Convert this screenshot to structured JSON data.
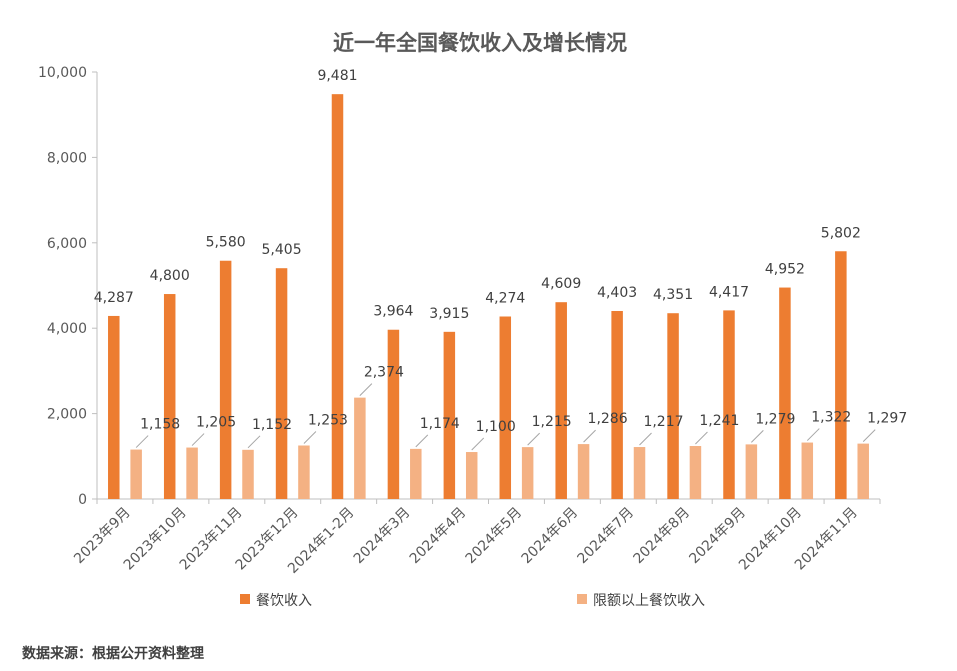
{
  "chart_data": {
    "type": "bar",
    "title": "近一年全国餐饮收入及增长情况",
    "categories": [
      "2023年9月",
      "2023年10月",
      "2023年11月",
      "2023年12月",
      "2024年1-2月",
      "2024年3月",
      "2024年4月",
      "2024年5月",
      "2024年6月",
      "2024年7月",
      "2024年8月",
      "2024年9月",
      "2024年10月",
      "2024年11月"
    ],
    "series": [
      {
        "name": "餐饮收入",
        "color": "#ED7D31",
        "values": [
          4287,
          4800,
          5580,
          5405,
          9481,
          3964,
          3915,
          4274,
          4609,
          4403,
          4351,
          4417,
          4952,
          5802
        ],
        "labels": [
          "4,287",
          "4,800",
          "5,580",
          "5,405",
          "9,481",
          "3,964",
          "3,915",
          "4,274",
          "4,609",
          "4,403",
          "4,351",
          "4,417",
          "4,952",
          "5,802"
        ]
      },
      {
        "name": "限额以上餐饮收入",
        "color": "#F4B183",
        "values": [
          1158,
          1205,
          1152,
          1253,
          2374,
          1174,
          1100,
          1215,
          1286,
          1217,
          1241,
          1279,
          1322,
          1297
        ],
        "labels": [
          "1,158",
          "1,205",
          "1,152",
          "1,253",
          "2,374",
          "1,174",
          "1,100",
          "1,215",
          "1,286",
          "1,217",
          "1,241",
          "1,279",
          "1,322",
          "1,297"
        ]
      }
    ],
    "ylim": [
      0,
      10000
    ],
    "yticks": [
      "0",
      "2,000",
      "4,000",
      "6,000",
      "8,000",
      "10,000"
    ],
    "ytick_values": [
      0,
      2000,
      4000,
      6000,
      8000,
      10000
    ],
    "grid": false,
    "legend_position": "bottom",
    "xlabel": "",
    "ylabel": ""
  },
  "source_note": "数据来源：根据公开资料整理"
}
